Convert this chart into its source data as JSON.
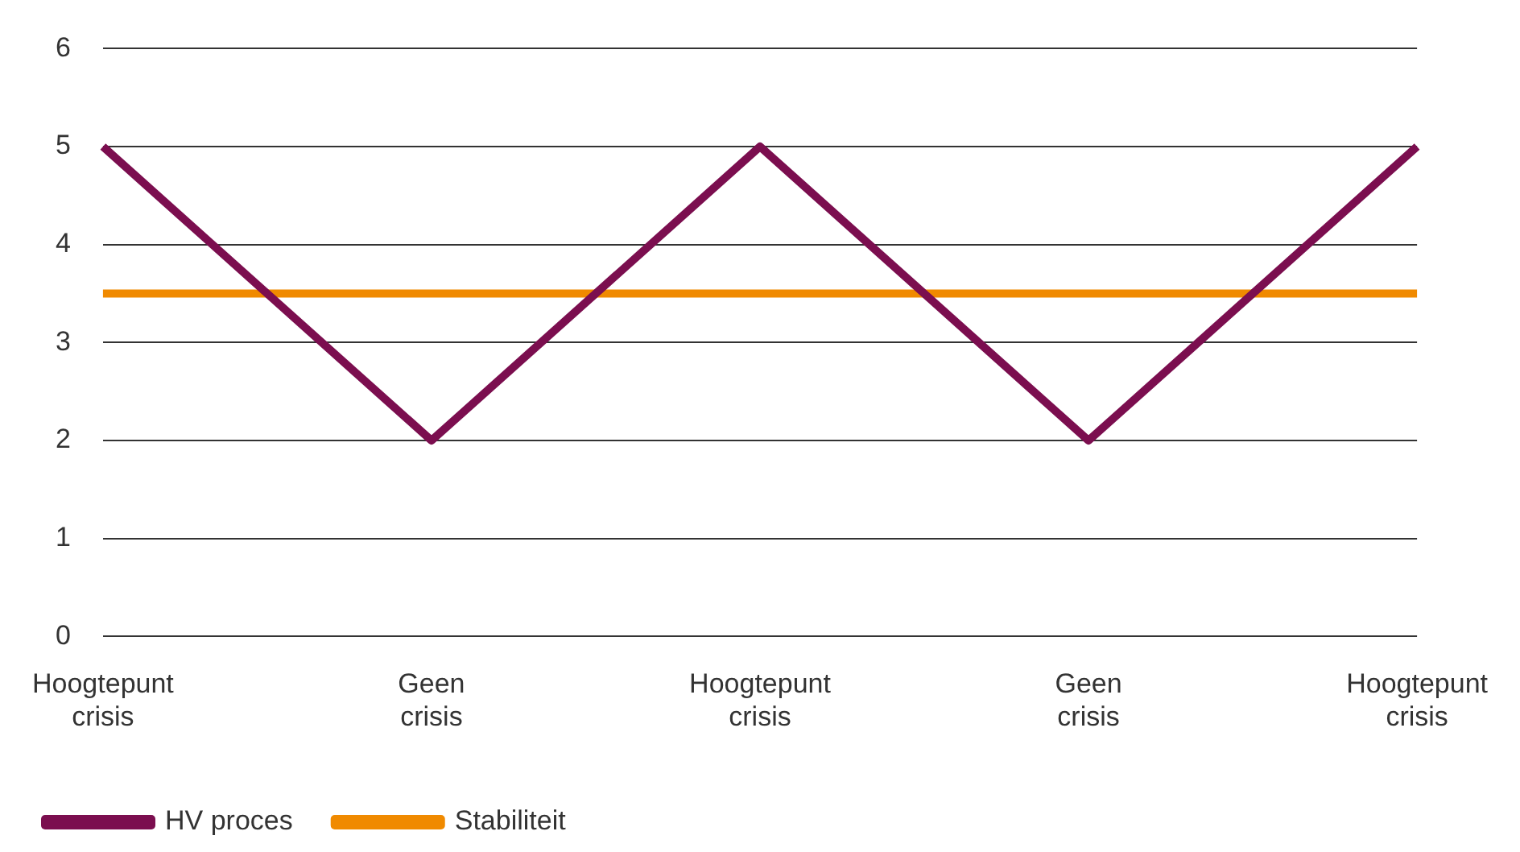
{
  "chart_data": {
    "type": "line",
    "categories": [
      "Hoogtepunt crisis",
      "Geen crisis",
      "Hoogtepunt crisis",
      "Geen crisis",
      "Hoogtepunt crisis"
    ],
    "series": [
      {
        "name": "HV proces",
        "color": "#7b0e4f",
        "values": [
          5,
          2,
          5,
          2,
          5
        ]
      },
      {
        "name": "Stabiliteit",
        "color": "#f08a00",
        "values": [
          3.5,
          3.5,
          3.5,
          3.5,
          3.5
        ]
      }
    ],
    "ylim": [
      0,
      6
    ],
    "yticks": [
      0,
      1,
      2,
      3,
      4,
      5,
      6
    ],
    "grid": "y",
    "legend": "bottom left",
    "marker": "none",
    "line_style": "solid"
  }
}
